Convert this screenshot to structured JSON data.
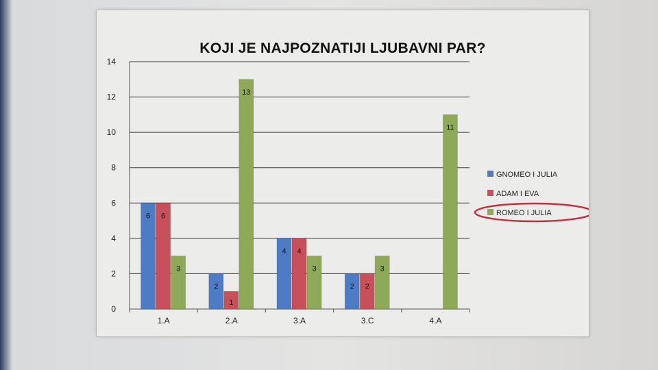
{
  "chart_data": {
    "type": "bar",
    "title": "KOJI JE NAJPOZNATIJI LJUBAVNI PAR?",
    "categories": [
      "1.A",
      "2.A",
      "3.A",
      "3.C",
      "4.A"
    ],
    "series": [
      {
        "name": "GNOMEO I JULIA",
        "color": "#4e7cc4",
        "values": [
          6,
          2,
          4,
          2,
          null
        ]
      },
      {
        "name": "ADAM I EVA",
        "color": "#c8505a",
        "values": [
          6,
          1,
          4,
          2,
          null
        ]
      },
      {
        "name": "ROMEO I JULIA",
        "color": "#8eaa58",
        "values": [
          3,
          13,
          3,
          3,
          11
        ]
      }
    ],
    "data_labels": [
      [
        "6",
        "2",
        "4",
        "2",
        null
      ],
      [
        "6",
        "1",
        "4",
        "2",
        null
      ],
      [
        "3",
        "13",
        "3",
        "3",
        "11"
      ]
    ],
    "ylim": [
      0,
      14
    ],
    "yticks": [
      "0",
      "2",
      "4",
      "6",
      "8",
      "10",
      "12",
      "14"
    ],
    "grid": true,
    "legend_position": "right",
    "highlighted_series": "ROMEO I JULIA",
    "highlight_color": "#c0303a"
  }
}
